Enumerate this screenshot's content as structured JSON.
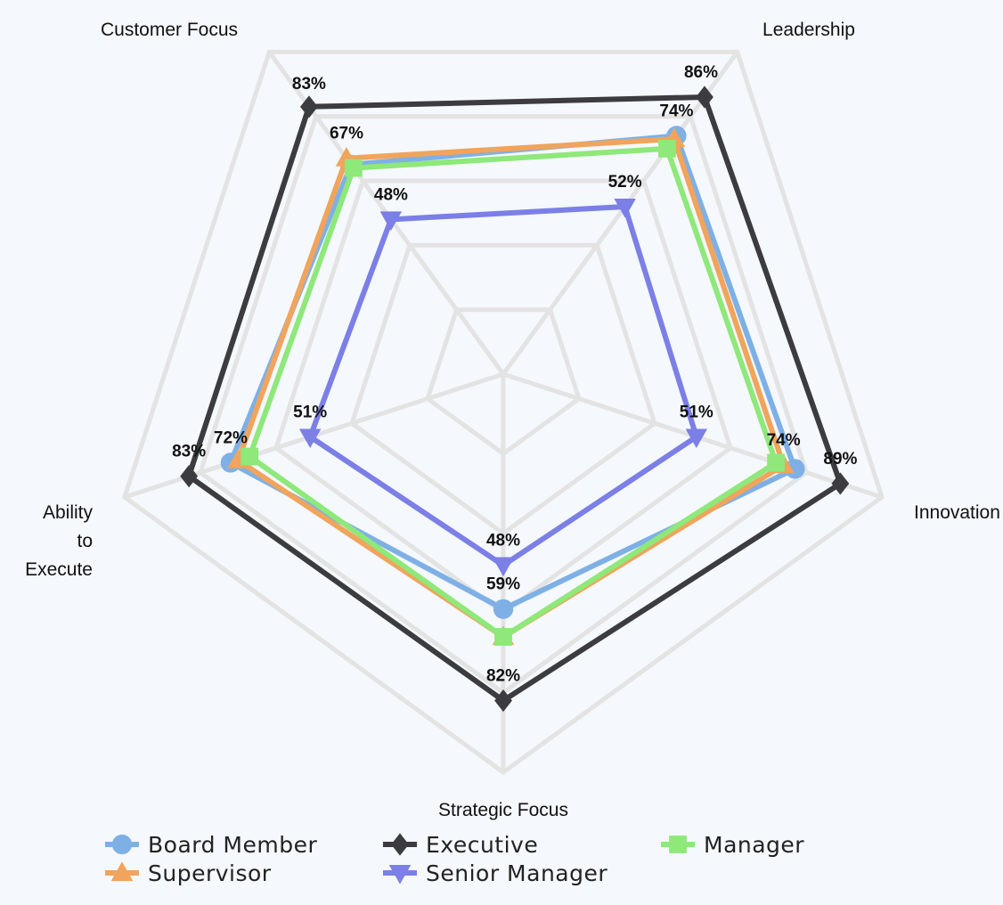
{
  "chart_data": {
    "type": "radar",
    "axes": [
      "Customer Focus",
      "Leadership",
      "Innovation",
      "Strategic Focus",
      "Ability to Execute"
    ],
    "axis_label_lines": {
      "Customer Focus": [
        "Customer Focus"
      ],
      "Leadership": [
        "Leadership"
      ],
      "Innovation": [
        "Innovation"
      ],
      "Strategic Focus": [
        "Strategic Focus"
      ],
      "Ability to Execute": [
        "Ability",
        "to",
        "Execute"
      ]
    },
    "range": [
      0,
      100
    ],
    "grid_levels": [
      20,
      40,
      60,
      80,
      100
    ],
    "value_format": "percent",
    "legend_position": "bottom",
    "series": [
      {
        "name": "Board Member",
        "color": "#7eb0e6",
        "marker": "circle",
        "values": [
          65,
          74,
          77,
          59,
          72
        ],
        "labels_shown": [
          false,
          true,
          false,
          true,
          true
        ]
      },
      {
        "name": "Executive",
        "color": "#3b3b40",
        "marker": "diamond",
        "values": [
          83,
          86,
          89,
          82,
          83
        ],
        "labels_shown": [
          true,
          true,
          true,
          true,
          true
        ]
      },
      {
        "name": "Manager",
        "color": "#8ee87a",
        "marker": "square",
        "values": [
          64,
          70,
          72,
          66,
          67
        ],
        "labels_shown": [
          false,
          false,
          false,
          false,
          false
        ]
      },
      {
        "name": "Supervisor",
        "color": "#f0a45c",
        "marker": "triangle-up",
        "values": [
          67,
          73,
          74,
          66,
          70
        ],
        "labels_shown": [
          true,
          false,
          true,
          false,
          false
        ]
      },
      {
        "name": "Senior Manager",
        "color": "#7b7fe6",
        "marker": "triangle-down",
        "values": [
          48,
          52,
          51,
          48,
          51
        ],
        "labels_shown": [
          true,
          true,
          true,
          true,
          true
        ]
      }
    ],
    "legend_order": [
      "Board Member",
      "Executive",
      "Manager",
      "Supervisor",
      "Senior Manager"
    ]
  }
}
